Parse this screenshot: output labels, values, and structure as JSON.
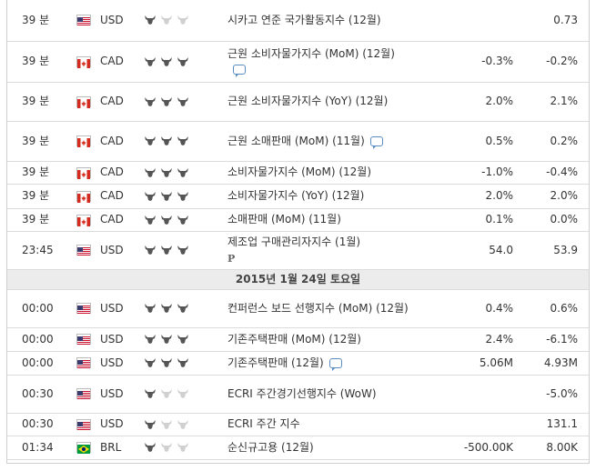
{
  "rows": [
    {
      "time": "39 분",
      "currency": "USD",
      "flag": "us",
      "imp": 1,
      "event": "시카고 연준 국가활동지수 (12월)",
      "comment": false,
      "prelim": false,
      "forecast": "",
      "previous": "0.73",
      "h": 45
    },
    {
      "time": "39 분",
      "currency": "CAD",
      "flag": "ca",
      "imp": 3,
      "event": "근원 소비자물가지수 (MoM) (12월)",
      "comment": true,
      "prelim": false,
      "forecast": "-0.3%",
      "previous": "-0.2%",
      "h": 45
    },
    {
      "time": "39 분",
      "currency": "CAD",
      "flag": "ca",
      "imp": 3,
      "event": "근원 소비자물가지수 (YoY) (12월)",
      "comment": false,
      "prelim": false,
      "forecast": "2.0%",
      "previous": "2.1%",
      "h": 43
    },
    {
      "time": "39 분",
      "currency": "CAD",
      "flag": "ca",
      "imp": 3,
      "event": "근원 소매판매 (MoM) (11월)",
      "comment": true,
      "prelim": false,
      "forecast": "0.5%",
      "previous": "0.2%",
      "h": 44
    },
    {
      "time": "39 분",
      "currency": "CAD",
      "flag": "ca",
      "imp": 3,
      "event": "소비자물가지수 (MoM) (12월)",
      "comment": false,
      "prelim": false,
      "forecast": "-1.0%",
      "previous": "-0.4%",
      "h": 25
    },
    {
      "time": "39 분",
      "currency": "CAD",
      "flag": "ca",
      "imp": 3,
      "event": "소비자물가지수 (YoY) (12월)",
      "comment": false,
      "prelim": false,
      "forecast": "2.0%",
      "previous": "2.0%",
      "h": 27
    },
    {
      "time": "39 분",
      "currency": "CAD",
      "flag": "ca",
      "imp": 3,
      "event": "소매판매 (MoM) (11월)",
      "comment": false,
      "prelim": false,
      "forecast": "0.1%",
      "previous": "0.0%",
      "h": 25
    },
    {
      "time": "23:45",
      "currency": "USD",
      "flag": "us",
      "imp": 3,
      "event": "제조업 구매관리자지수 (1월)",
      "comment": false,
      "prelim": true,
      "forecast": "54.0",
      "previous": "53.9",
      "h": 42
    },
    {
      "date": "2015년 1월 24일 토요일",
      "h": 22
    },
    {
      "time": "00:00",
      "currency": "USD",
      "flag": "us",
      "imp": 3,
      "event": "컨퍼런스 보드 선행지수 (MoM) (12월)",
      "comment": false,
      "prelim": false,
      "forecast": "0.4%",
      "previous": "0.6%",
      "h": 42
    },
    {
      "time": "00:00",
      "currency": "USD",
      "flag": "us",
      "imp": 3,
      "event": "기존주택판매 (MoM) (12월)",
      "comment": false,
      "prelim": false,
      "forecast": "2.4%",
      "previous": "-6.1%",
      "h": 26
    },
    {
      "time": "00:00",
      "currency": "USD",
      "flag": "us",
      "imp": 3,
      "event": "기존주택판매 (12월)",
      "comment": true,
      "prelim": false,
      "forecast": "5.06M",
      "previous": "4.93M",
      "h": 26
    },
    {
      "time": "00:30",
      "currency": "USD",
      "flag": "us",
      "imp": 1,
      "event": "ECRI 주간경기선행지수 (WoW)",
      "comment": false,
      "prelim": false,
      "forecast": "",
      "previous": "-5.0%",
      "h": 42
    },
    {
      "time": "00:30",
      "currency": "USD",
      "flag": "us",
      "imp": 1,
      "event": "ECRI 주간 지수",
      "comment": false,
      "prelim": false,
      "forecast": "",
      "previous": "131.1",
      "h": 25
    },
    {
      "time": "01:34",
      "currency": "BRL",
      "flag": "br",
      "imp": 1,
      "event": "순신규고용 (12월)",
      "comment": false,
      "prelim": false,
      "forecast": "-500.00K",
      "previous": "8.00K",
      "h": 26
    }
  ],
  "prelim_mark": "P",
  "colors": {
    "bull_on": "#555555",
    "bull_off": "#d0d0d0",
    "border": "#dcdcdc",
    "date_bg": "#ececec"
  },
  "icons": {
    "importance": "bull-icon",
    "comment": "comment-icon",
    "flag_us": "us-flag-icon",
    "flag_ca": "canada-flag-icon",
    "flag_br": "brazil-flag-icon"
  }
}
